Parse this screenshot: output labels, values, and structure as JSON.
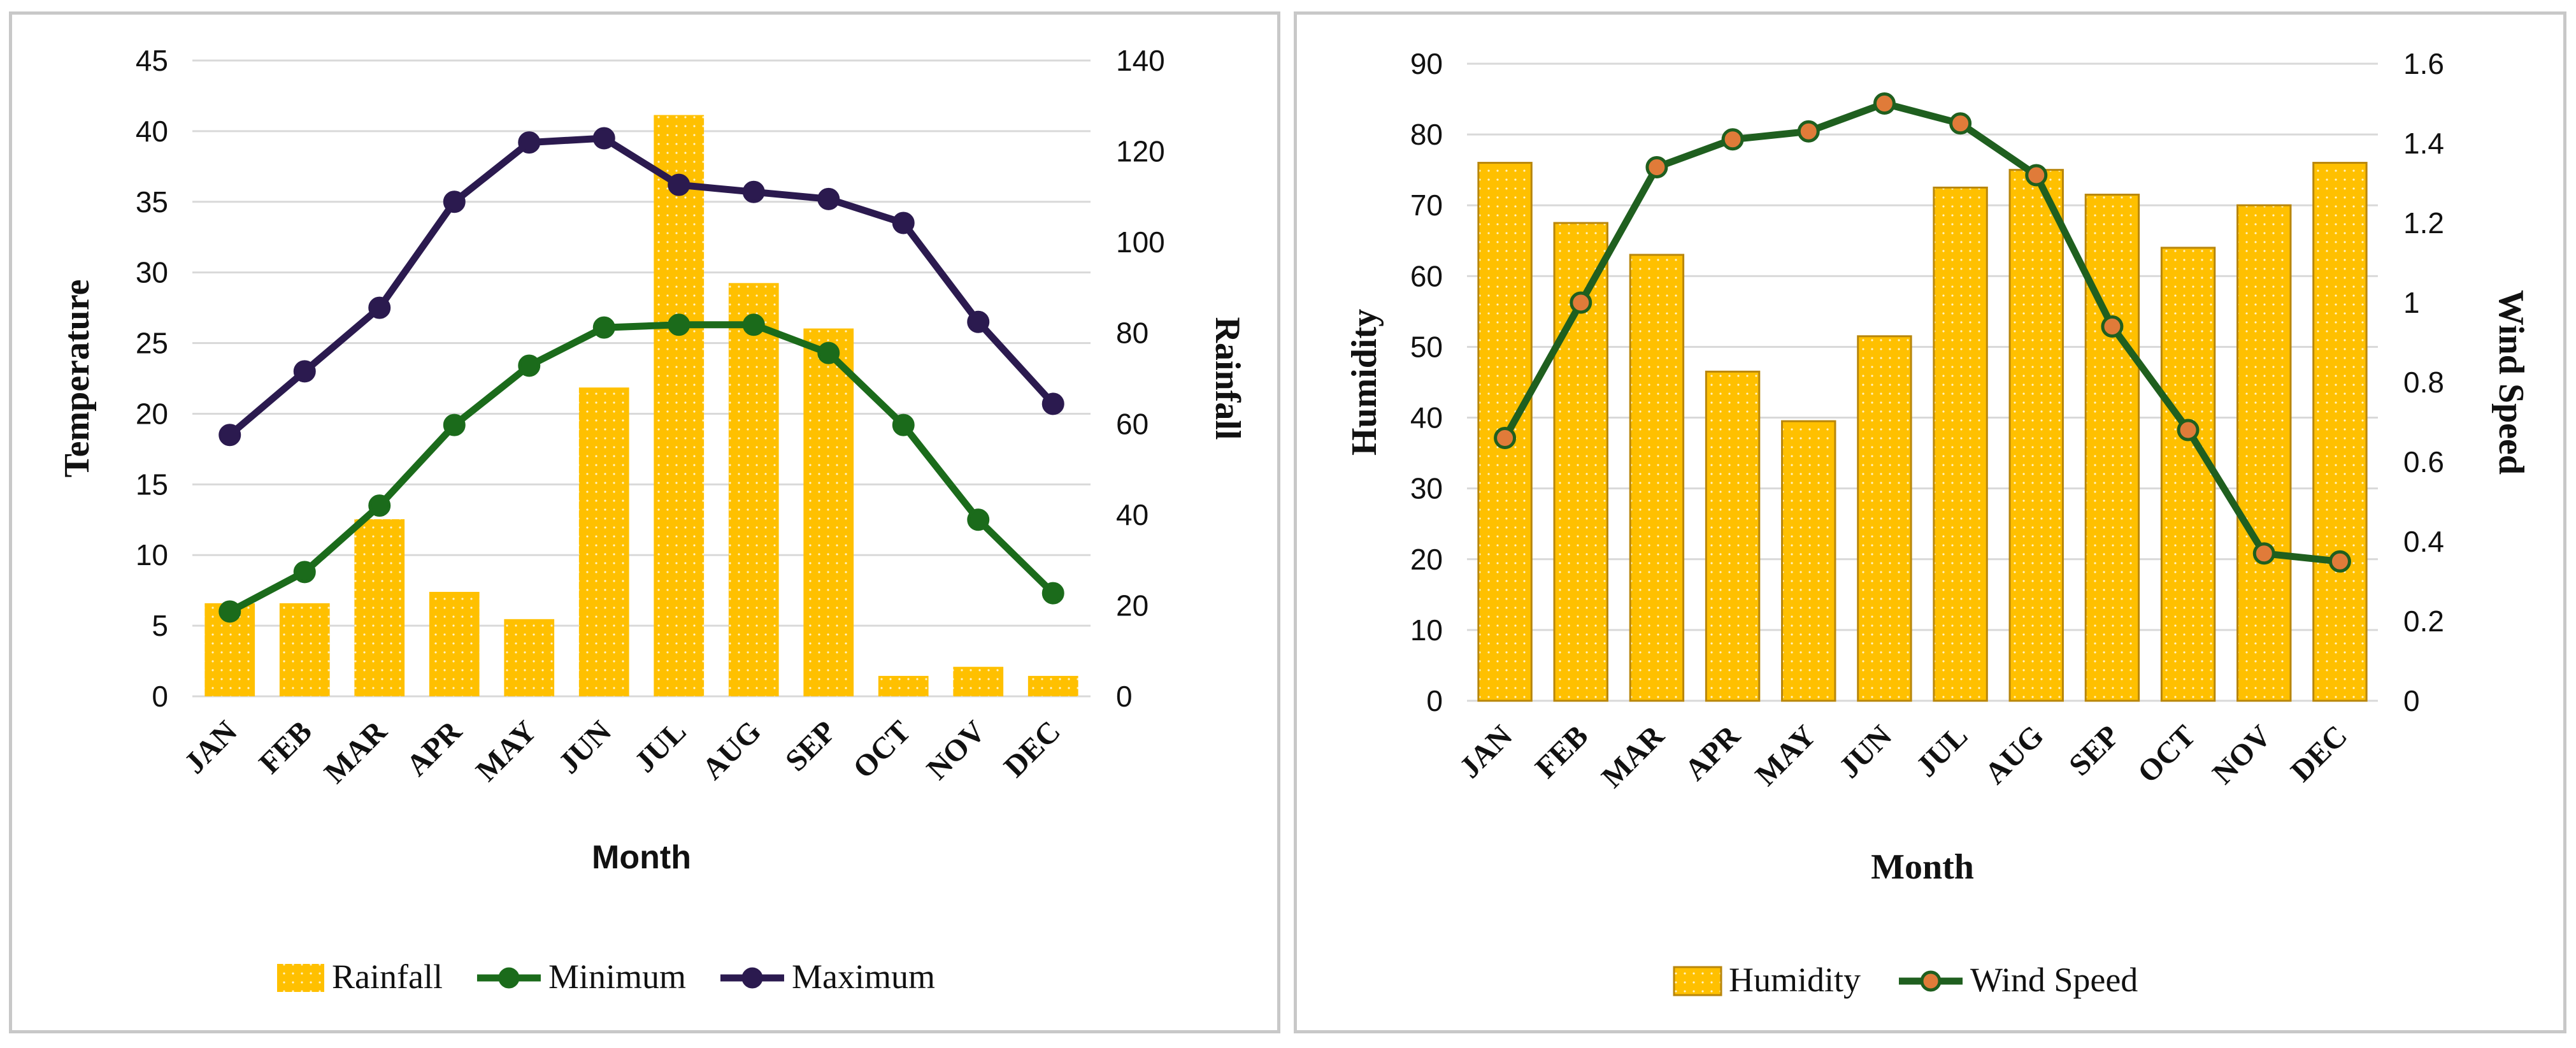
{
  "colors": {
    "bar_fill": "#FFC000",
    "bar_edge": "#B8860B",
    "minimum_line": "#1B6B1B",
    "maximum_line": "#2B1A4F",
    "wind_line": "#1F5F1F",
    "wind_marker": "#E07B39",
    "grid": "#D9D9D9"
  },
  "chart_data": [
    {
      "type": "bar+line",
      "title": "",
      "xlabel": "Month",
      "ylabel": "Temperature",
      "y2label": "Rainfall",
      "categories": [
        "JAN",
        "FEB",
        "MAR",
        "APR",
        "MAY",
        "JUN",
        "JUL",
        "AUG",
        "SEP",
        "OCT",
        "NOV",
        "DEC"
      ],
      "ylim": [
        0,
        45
      ],
      "y_ticks": [
        "0",
        "5",
        "10",
        "15",
        "20",
        "25",
        "30",
        "35",
        "40",
        "45"
      ],
      "y2lim": [
        0,
        140
      ],
      "y2_ticks": [
        "0",
        "20",
        "40",
        "60",
        "80",
        "100",
        "120",
        "140"
      ],
      "series": [
        {
          "name": "Rainfall",
          "type": "bar",
          "axis": "y2",
          "values": [
            20.5,
            20.5,
            39,
            23,
            17,
            68,
            128,
            91,
            81,
            4.5,
            6.5,
            4.5
          ]
        },
        {
          "name": "Minimum",
          "type": "line",
          "axis": "y",
          "values": [
            6,
            8.8,
            13.5,
            19.2,
            23.4,
            26.1,
            26.3,
            26.3,
            24.3,
            19.2,
            12.5,
            7.3
          ]
        },
        {
          "name": "Maximum",
          "type": "line",
          "axis": "y",
          "values": [
            18.5,
            23,
            27.5,
            35,
            39.2,
            39.5,
            36.2,
            35.7,
            35.2,
            33.5,
            26.5,
            20.7
          ]
        }
      ],
      "legend": [
        "Rainfall",
        "Minimum",
        "Maximum"
      ],
      "legend_position": "bottom"
    },
    {
      "type": "bar+line",
      "title": "",
      "xlabel": "Month",
      "ylabel": "Humidity",
      "y2label": "Wind  Speed",
      "categories": [
        "JAN",
        "FEB",
        "MAR",
        "APR",
        "MAY",
        "JUN",
        "JUL",
        "AUG",
        "SEP",
        "OCT",
        "NOV",
        "DEC"
      ],
      "ylim": [
        0,
        90
      ],
      "y_ticks": [
        "0",
        "10",
        "20",
        "30",
        "40",
        "50",
        "60",
        "70",
        "80",
        "90"
      ],
      "y2lim": [
        0,
        1.6
      ],
      "y2_ticks": [
        "0",
        "0.2",
        "0.4",
        "0.6",
        "0.8",
        "1",
        "1.2",
        "1.4",
        "1.6"
      ],
      "series": [
        {
          "name": "Humidity",
          "type": "bar",
          "axis": "y",
          "values": [
            76,
            67.5,
            63,
            46.5,
            39.5,
            51.5,
            72.5,
            75,
            71.5,
            64,
            70,
            76
          ]
        },
        {
          "name": "Wind Speed",
          "type": "line",
          "axis": "y2",
          "values": [
            0.66,
            1.0,
            1.34,
            1.41,
            1.43,
            1.5,
            1.45,
            1.32,
            0.94,
            0.68,
            0.37,
            0.35
          ]
        }
      ],
      "legend": [
        "Humidity",
        "Wind Speed"
      ],
      "legend_position": "bottom"
    }
  ]
}
